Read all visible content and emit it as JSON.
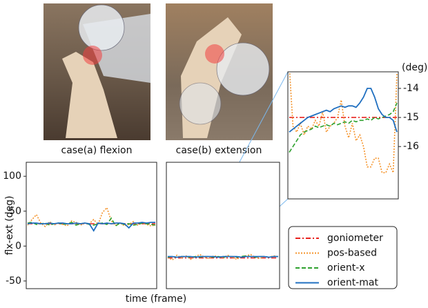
{
  "captions": [
    "case(a) flexion",
    "case(b) extension"
  ],
  "chart_data": [
    {
      "type": "line",
      "ylabel": "flx-ext (deg)",
      "xlabel": "time (frame)",
      "ylim": [
        -61,
        120
      ],
      "yticks": [
        -50,
        0,
        50,
        100
      ],
      "series": [
        {
          "name": "goniometer",
          "color": "#e8201c",
          "line_style": "dashdot",
          "values": [
            32,
            32,
            32,
            32,
            32,
            32,
            32,
            32,
            32,
            32,
            32,
            32,
            32,
            32,
            32,
            32,
            32,
            32,
            32,
            32,
            32,
            32,
            32,
            32,
            32,
            32,
            32,
            32,
            32,
            32
          ]
        },
        {
          "name": "pos-based",
          "color": "#f5932a",
          "line_style": "dotted",
          "values": [
            30,
            38,
            45,
            33,
            28,
            35,
            30,
            33,
            31,
            29,
            36,
            34,
            30,
            33,
            32,
            38,
            31,
            48,
            55,
            36,
            30,
            33,
            29,
            31,
            35,
            30,
            33,
            31,
            29,
            30
          ]
        },
        {
          "name": "orient-x",
          "color": "#2ca02c",
          "line_style": "dashed",
          "values": [
            33,
            34,
            31,
            32,
            33,
            30,
            32,
            33,
            31,
            32,
            34,
            30,
            32,
            33,
            31,
            30,
            32,
            33,
            31,
            40,
            29,
            33,
            31,
            32,
            30,
            31,
            33,
            32,
            31,
            30
          ]
        },
        {
          "name": "orient-mat",
          "color": "#1f6fc0",
          "line_style": "solid",
          "values": [
            32,
            33,
            33,
            32,
            32,
            33,
            32,
            33,
            33,
            32,
            32,
            33,
            32,
            33,
            32,
            22,
            33,
            32,
            33,
            32,
            33,
            33,
            32,
            26,
            33,
            33,
            34,
            33,
            34,
            34
          ]
        }
      ]
    },
    {
      "type": "line",
      "ylim": [
        -61,
        120
      ],
      "series": [
        {
          "color": "#e8201c",
          "line_style": "dashdot",
          "values": [
            -17,
            -17,
            -17,
            -17,
            -17,
            -17,
            -17,
            -17,
            -17,
            -17,
            -17,
            -17,
            -17,
            -17,
            -17,
            -17,
            -17,
            -17,
            -17,
            -17,
            -17,
            -17,
            -17,
            -17,
            -17
          ]
        },
        {
          "color": "#f5932a",
          "line_style": "dotted",
          "values": [
            -16,
            -20,
            -13,
            -17,
            -14,
            -19,
            -15,
            -12,
            -16,
            -18,
            -14,
            -15,
            -17,
            -13,
            -16,
            -19,
            -15,
            -14,
            -12,
            -16,
            -18,
            -15,
            -16,
            -14,
            -15
          ]
        },
        {
          "color": "#2ca02c",
          "line_style": "dashed",
          "values": [
            -16,
            -15,
            -16,
            -15,
            -15,
            -16,
            -15,
            -16,
            -15,
            -15,
            -16,
            -15,
            -16,
            -15,
            -15,
            -16,
            -15,
            -14,
            -15,
            -16,
            -15,
            -15,
            -16,
            -15,
            -15
          ]
        },
        {
          "color": "#1f6fc0",
          "line_style": "solid",
          "values": [
            -15,
            -15,
            -16,
            -15,
            -15,
            -15,
            -16,
            -15,
            -15,
            -15,
            -15,
            -16,
            -15,
            -15,
            -15,
            -15,
            -16,
            -15,
            -15,
            -15,
            -15,
            -15,
            -16,
            -15,
            -15
          ]
        }
      ]
    },
    {
      "type": "line",
      "ylabel": "(deg)",
      "ylim": [
        -17.8,
        -13.43
      ],
      "yticks": [
        -14,
        -15,
        -16
      ],
      "series": [
        {
          "color": "#e8201c",
          "line_style": "dashdot",
          "values": [
            -15,
            -15,
            -15,
            -15,
            -15,
            -15,
            -15,
            -15,
            -15,
            -15,
            -15,
            -15,
            -15,
            -15,
            -15,
            -15,
            -15,
            -15,
            -15,
            -15,
            -15,
            -15,
            -15,
            -15,
            -15,
            -15,
            -15,
            -15,
            -15,
            -15
          ]
        },
        {
          "color": "#f5932a",
          "line_style": "dotted",
          "values": [
            -13.2,
            -15.3,
            -15.5,
            -15.2,
            -15.6,
            -15.3,
            -15.4,
            -15.1,
            -15.3,
            -14.8,
            -15.5,
            -15.3,
            -15.2,
            -15.0,
            -14.4,
            -15.3,
            -15.7,
            -15.2,
            -15.8,
            -15.6,
            -16.0,
            -16.7,
            -16.7,
            -16.4,
            -16.4,
            -16.9,
            -16.9,
            -16.6,
            -16.9,
            -13.5
          ]
        },
        {
          "color": "#2ca02c",
          "line_style": "dashed",
          "values": [
            -16.2,
            -16.0,
            -15.8,
            -15.6,
            -15.5,
            -15.45,
            -15.4,
            -15.3,
            -15.35,
            -15.3,
            -15.25,
            -15.3,
            -15.2,
            -15.25,
            -15.2,
            -15.15,
            -15.2,
            -15.1,
            -15.15,
            -15.1,
            -15.1,
            -15.05,
            -15.1,
            -15.0,
            -15.05,
            -15.0,
            -14.95,
            -14.9,
            -14.8,
            -14.5
          ]
        },
        {
          "color": "#1f6fc0",
          "line_style": "solid",
          "values": [
            -15.5,
            -15.4,
            -15.3,
            -15.2,
            -15.1,
            -15.0,
            -14.95,
            -14.9,
            -14.85,
            -14.8,
            -14.75,
            -14.8,
            -14.7,
            -14.65,
            -14.6,
            -14.65,
            -14.6,
            -14.6,
            -14.65,
            -14.5,
            -14.3,
            -14.0,
            -14.0,
            -14.3,
            -14.7,
            -14.9,
            -15.0,
            -15.0,
            -15.1,
            -15.5
          ]
        }
      ]
    }
  ]
}
